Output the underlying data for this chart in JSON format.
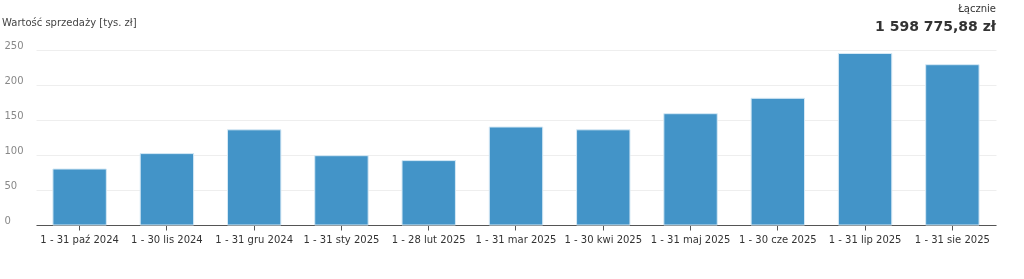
{
  "chart_data": {
    "type": "bar",
    "ylabel": "Wartość sprzedaży [tys. zł]",
    "annotations": [
      "Łącznie",
      "1 598 775,88 zł"
    ],
    "categories": [
      "1 - 31 paź 2024",
      "1 - 30 lis 2024",
      "1 - 31 gru 2024",
      "1 - 31 sty 2025",
      "1 - 28 lut 2025",
      "1 - 31 mar 2025",
      "1 - 30 kwi 2025",
      "1 - 31 maj 2025",
      "1 - 30 cze 2025",
      "1 - 31 lip 2025",
      "1 - 31 sie 2025"
    ],
    "values": [
      80,
      102,
      136,
      99,
      92,
      140,
      136,
      159,
      181,
      245,
      229
    ],
    "color": "#4394c8",
    "ylim": [
      0,
      250
    ],
    "yticks": [
      0,
      50,
      100,
      150,
      200,
      250
    ],
    "grid": "y"
  }
}
